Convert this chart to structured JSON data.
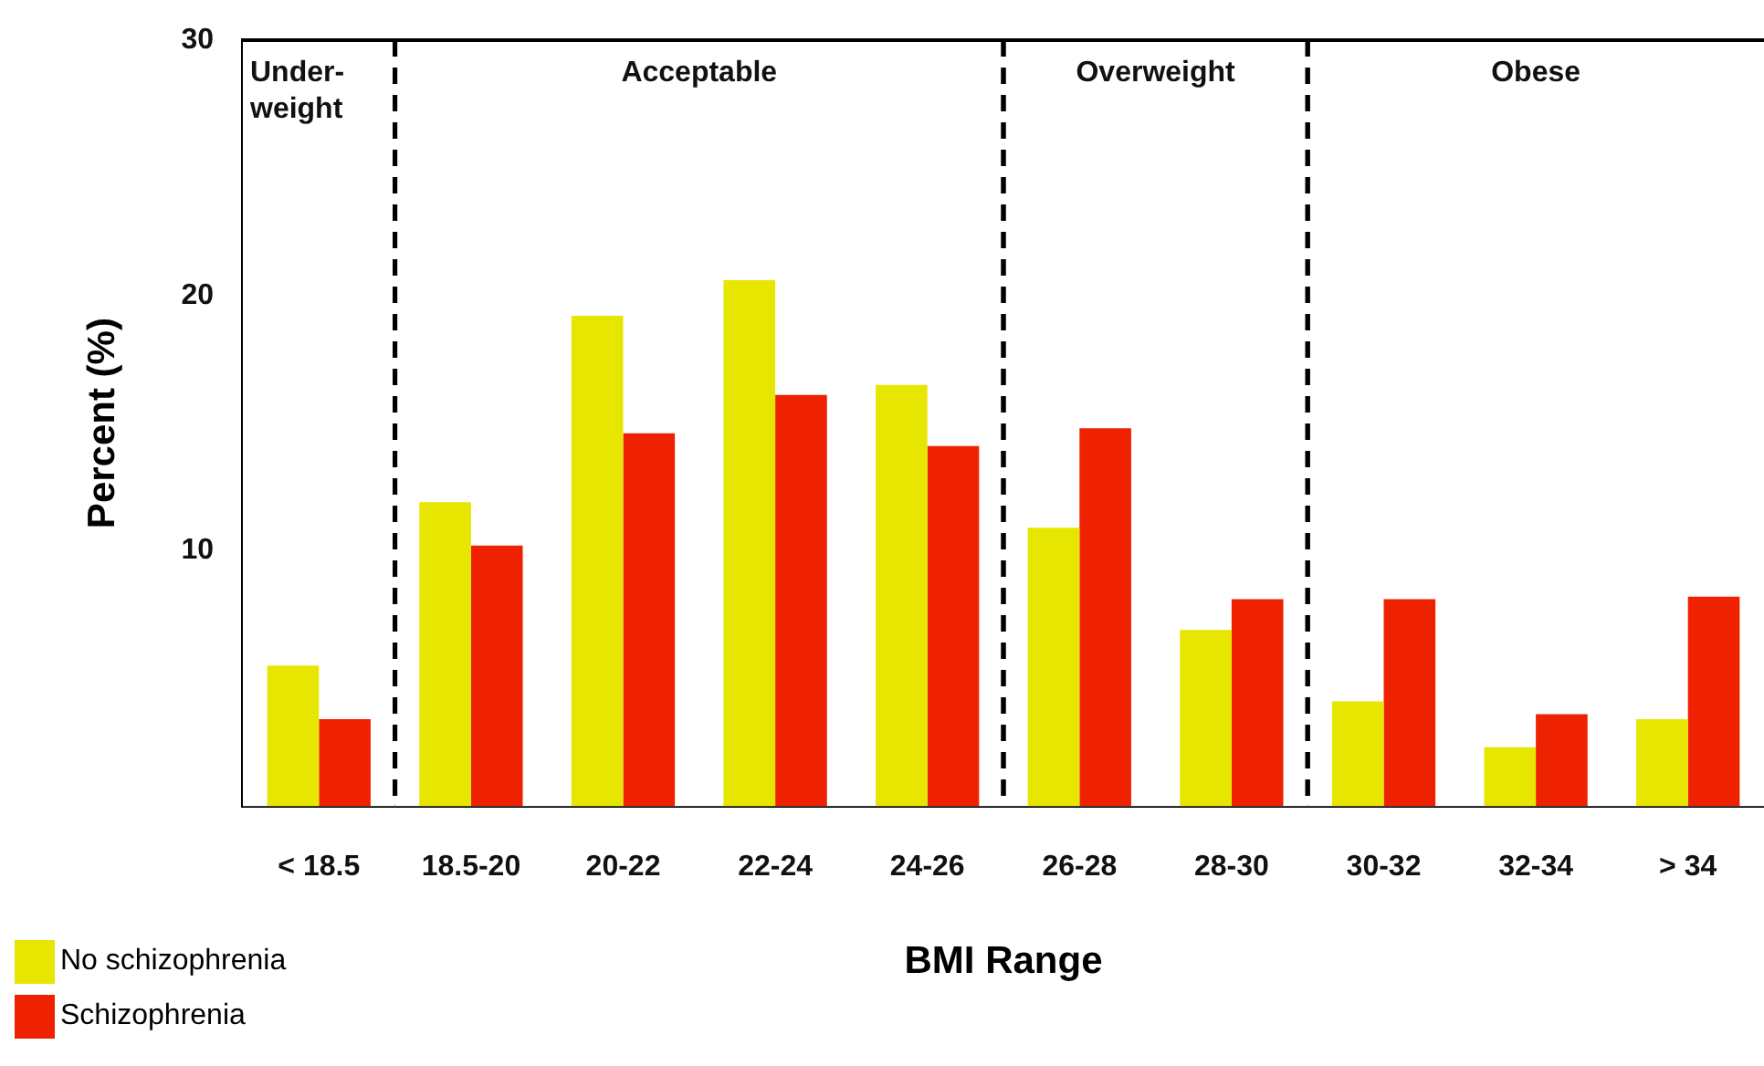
{
  "chart_data": {
    "type": "bar",
    "xlabel": "BMI Range",
    "ylabel": "Percent (%)",
    "categories": [
      "< 18.5",
      "18.5-20",
      "20-22",
      "22-24",
      "24-26",
      "26-28",
      "28-30",
      "30-32",
      "32-34",
      "> 34"
    ],
    "series": [
      {
        "name": "No schizophrenia",
        "color": "#e6e600",
        "values": [
          5.5,
          11.9,
          19.2,
          20.6,
          16.5,
          10.9,
          6.9,
          4.1,
          2.3,
          3.4
        ]
      },
      {
        "name": "Schizophrenia",
        "color": "#ee2200",
        "values": [
          3.4,
          10.2,
          14.6,
          16.1,
          14.1,
          14.8,
          8.1,
          8.1,
          3.6,
          8.2
        ]
      }
    ],
    "ylim": [
      0,
      30
    ],
    "yticks": [
      10,
      20,
      30
    ],
    "bands": [
      {
        "axis": "x",
        "from": "< 18.5",
        "to": "< 18.5",
        "label": "Under-weight",
        "color": "#ffffff"
      },
      {
        "axis": "x",
        "from": "18.5-20",
        "to": "24-26",
        "label": "Acceptable",
        "color": "#ffffff"
      },
      {
        "axis": "x",
        "from": "26-28",
        "to": "28-30",
        "label": "Overweight",
        "color": "#ffffff"
      },
      {
        "axis": "x",
        "from": "30-32",
        "to": "> 34",
        "label": "Obese",
        "color": "#ffffff"
      }
    ],
    "grid": false,
    "legend": "bottom left"
  }
}
